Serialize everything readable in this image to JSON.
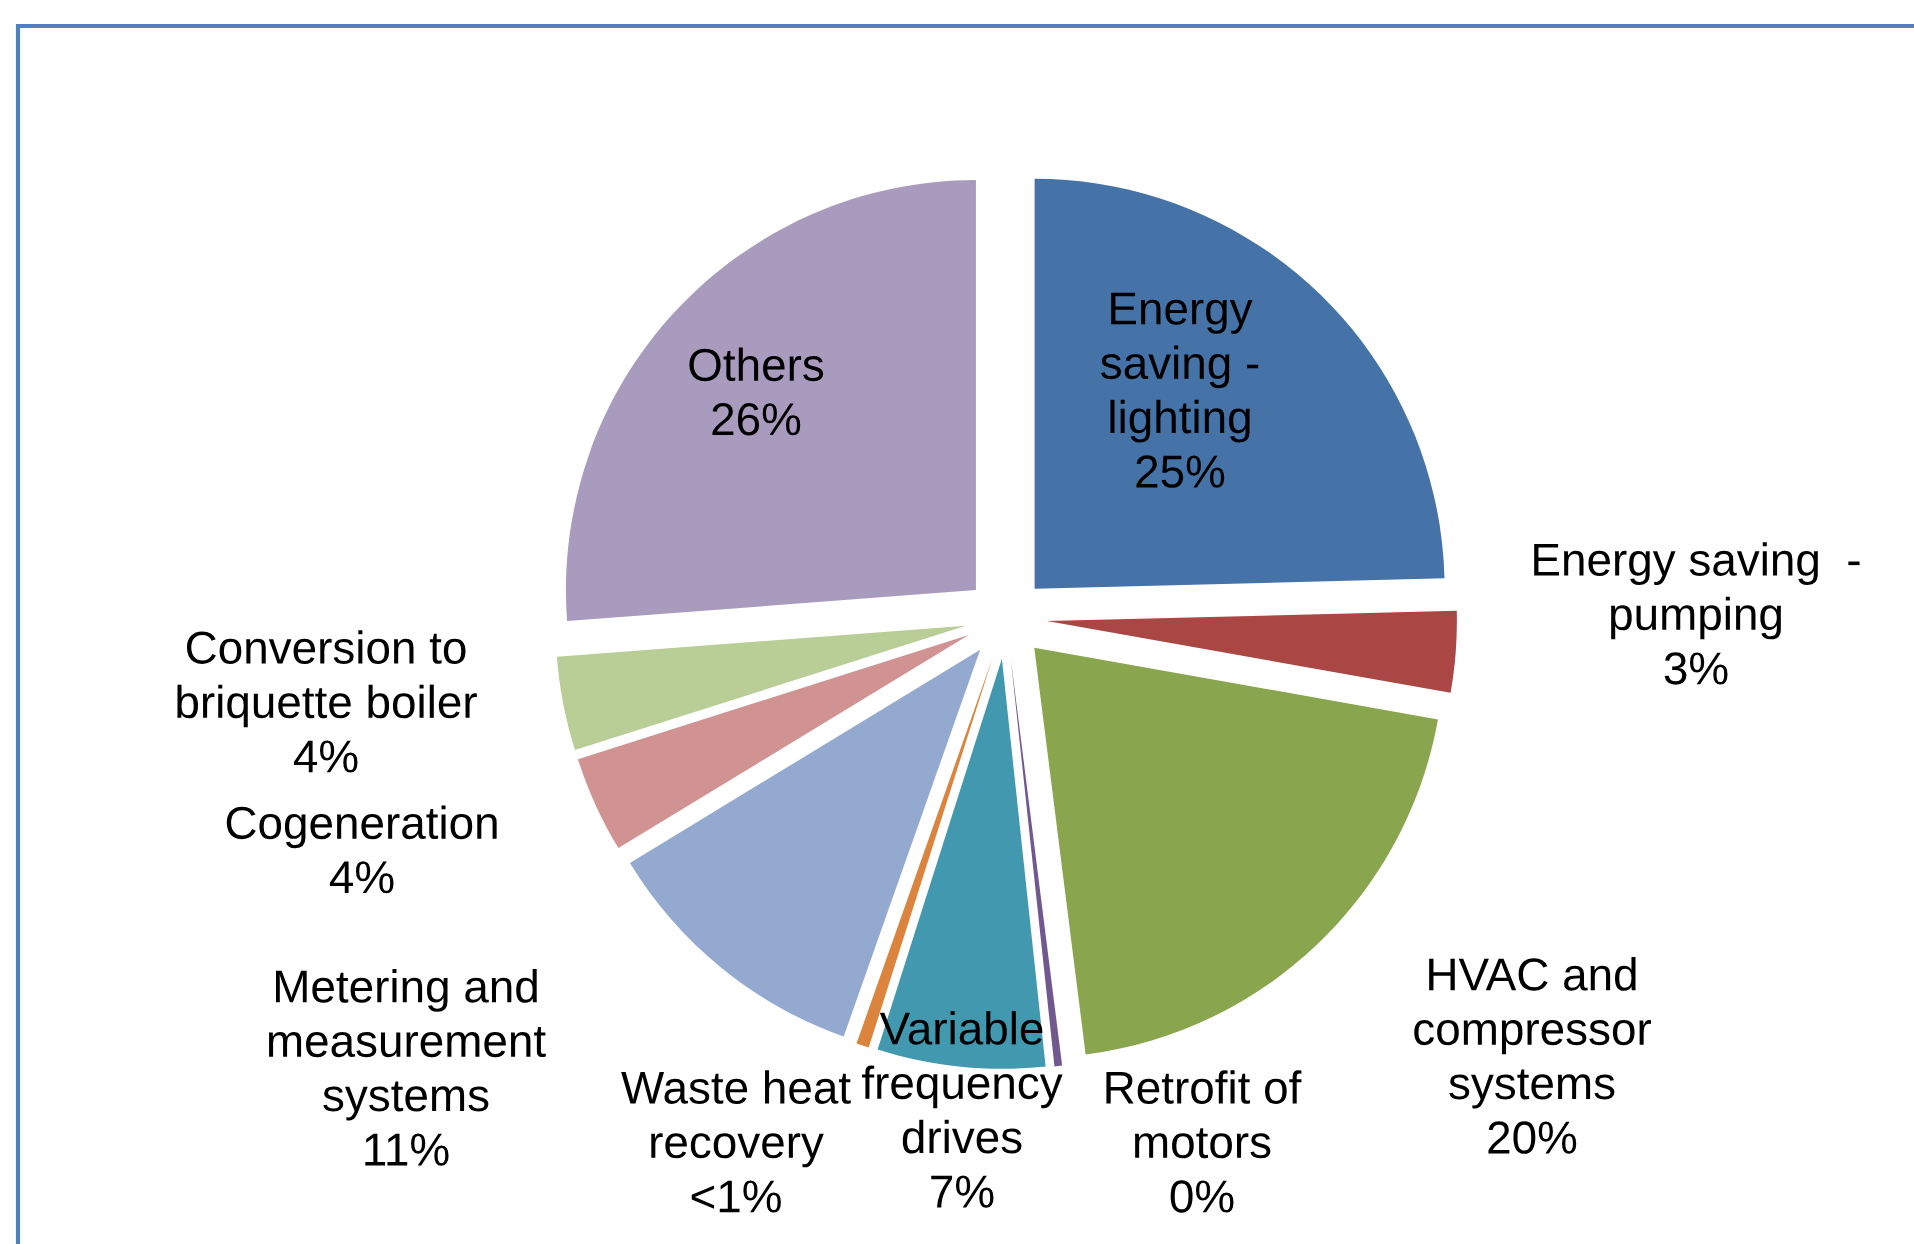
{
  "chart_data": {
    "type": "pie",
    "categories": [
      "Energy\nsaving -\nlighting",
      "Energy saving  -\npumping",
      "HVAC and\ncompressor\nsystems",
      "Retrofit of\nmotors",
      "Variable\nfrequency\ndrives",
      "Waste heat\nrecovery",
      "Metering and\nmeasurement\nsystems",
      "Cogeneration",
      "Conversion to\nbriquette boiler",
      "Others"
    ],
    "values": [
      24.6,
      3.2,
      20.2,
      0.3,
      6.6,
      0.5,
      10.9,
      3.8,
      3.7,
      26.2
    ],
    "value_labels": [
      "25%",
      "3%",
      "20%",
      "0%",
      "7%",
      "<1%",
      "11%",
      "4%",
      "4%",
      "26%"
    ],
    "colors": [
      "#4572a7",
      "#aa4643",
      "#89a54e",
      "#71588f",
      "#4198af",
      "#db843d",
      "#93a9cf",
      "#d19392",
      "#b9cd96",
      "#a99bbd"
    ]
  }
}
